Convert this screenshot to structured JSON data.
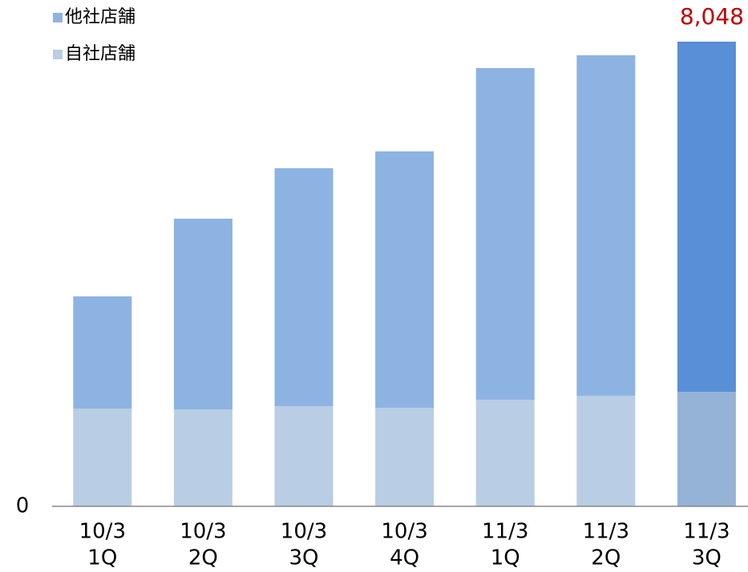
{
  "chart_data": {
    "type": "stacked_bar",
    "categories": [
      [
        "10/3",
        "1Q"
      ],
      [
        "10/3",
        "2Q"
      ],
      [
        "10/3",
        "3Q"
      ],
      [
        "10/3",
        "4Q"
      ],
      [
        "11/3",
        "1Q"
      ],
      [
        "11/3",
        "2Q"
      ],
      [
        "11/3",
        "3Q"
      ]
    ],
    "series": [
      {
        "name": "他社店舗",
        "color": "#8db3e2",
        "colors": [
          "#8db3e2",
          "#8db3e2",
          "#8db3e2",
          "#8db3e2",
          "#8db3e2",
          "#8db3e2",
          "#588fd6"
        ],
        "values": [
          1943,
          3303,
          4121,
          4440,
          5745,
          5897,
          6064
        ]
      },
      {
        "name": "自社店舗",
        "color": "#b9cde5",
        "colors": [
          "#b9cde5",
          "#b9cde5",
          "#b9cde5",
          "#b9cde5",
          "#b9cde5",
          "#b9cde5",
          "#95b3d7"
        ],
        "values": [
          1693,
          1679,
          1735,
          1707,
          1846,
          1915,
          1984
        ]
      }
    ],
    "annotation": {
      "value": 8048,
      "label": "8,048",
      "color": "#c00000"
    },
    "ylim": [
      0,
      8048
    ],
    "yticks": [
      0
    ],
    "legend": "top-left"
  }
}
